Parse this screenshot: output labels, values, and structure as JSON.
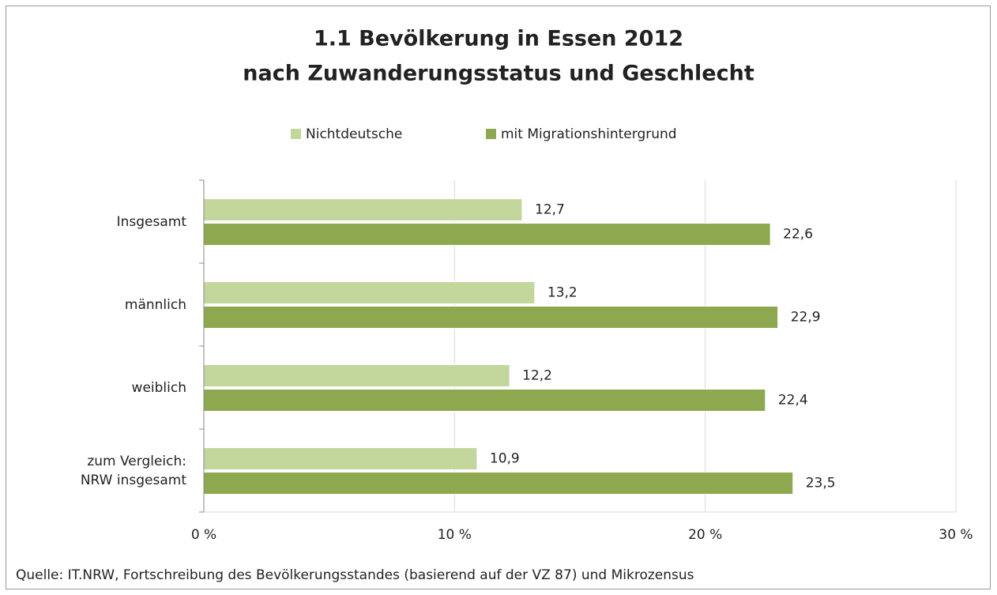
{
  "chart_data": {
    "type": "barh",
    "title": [
      "1.1 Bevölkerung in Essen 2012",
      "nach Zuwanderungsstatus und Geschlecht"
    ],
    "categories": [
      "Insgesamt",
      "männlich",
      "weiblich",
      "zum Vergleich: NRW insgesamt"
    ],
    "series": [
      {
        "name": "Nichtdeutsche",
        "color": "#c3d69b",
        "values": [
          12.7,
          13.2,
          12.2,
          10.9
        ],
        "value_labels": [
          "12,7",
          "13,2",
          "12,2",
          "10,9"
        ]
      },
      {
        "name": "mit Migrationshintergrund",
        "color": "#8ea84f",
        "values": [
          22.6,
          22.9,
          22.4,
          23.5
        ],
        "value_labels": [
          "22,6",
          "22,9",
          "22,4",
          "23,5"
        ]
      }
    ],
    "xlim": [
      0,
      30
    ],
    "xticks": [
      {
        "value": 0,
        "label": "0 %"
      },
      {
        "value": 10,
        "label": "10 %"
      },
      {
        "value": 20,
        "label": "20 %"
      },
      {
        "value": 30,
        "label": "30 %"
      }
    ],
    "grid": true,
    "legend": "top",
    "source": "Quelle: IT.NRW, Fortschreibung des Bevölkerungsstandes (basierend auf der VZ 87) und Mikrozensus"
  }
}
